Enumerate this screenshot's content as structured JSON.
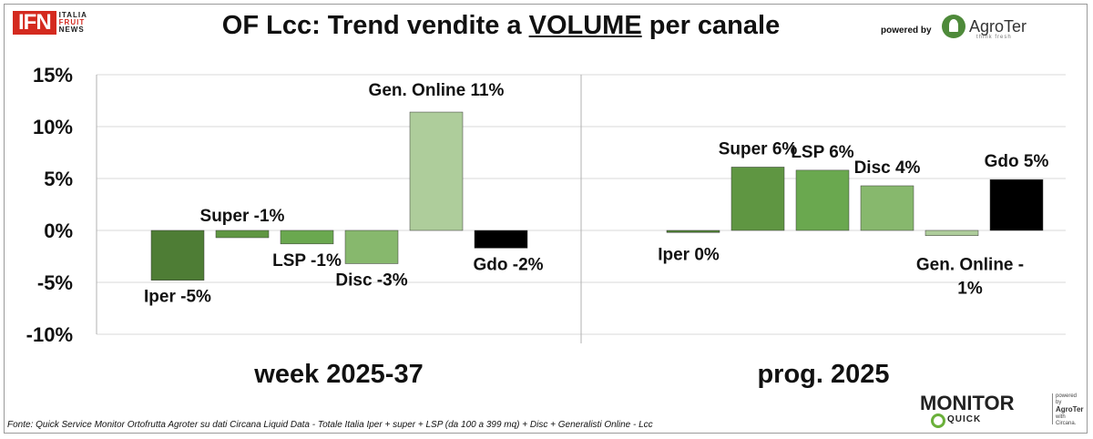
{
  "header": {
    "ifn_logo": "IFN",
    "ifn_sub": [
      "ITALIA",
      "FRUIT",
      "NEWS"
    ],
    "title_pre": "OF Lcc: Trend vendite a ",
    "title_under": "VOLUME",
    "title_post": " per canale",
    "powered_by": "powered by",
    "agroter_name": "AgroTer",
    "agroter_tag": "think fresh"
  },
  "chart_data": {
    "type": "bar",
    "y_ticks": [
      "15%",
      "10%",
      "5%",
      "0%",
      "-5%",
      "-10%"
    ],
    "ylim": [
      -10,
      15
    ],
    "grid": true,
    "groups": [
      {
        "name": "week 2025-37",
        "bars": [
          {
            "label": "Iper -5%",
            "value": -4.8,
            "color": "#4e7d35"
          },
          {
            "label": "Super -1%",
            "value": -0.7,
            "color": "#5f9642"
          },
          {
            "label": "LSP -1%",
            "value": -1.3,
            "color": "#6aa84f"
          },
          {
            "label": "Disc -3%",
            "value": -3.2,
            "color": "#87b86d"
          },
          {
            "label": "Gen. Online 11%",
            "value": 11.4,
            "color": "#aecd9b"
          },
          {
            "label": "Gdo -2%",
            "value": -1.7,
            "color": "#000000"
          }
        ]
      },
      {
        "name": "prog. 2025",
        "bars": [
          {
            "label": "Iper 0%",
            "value": -0.2,
            "color": "#4e7d35"
          },
          {
            "label": "Super 6%",
            "value": 6.1,
            "color": "#5f9642"
          },
          {
            "label": "LSP 6%",
            "value": 5.8,
            "color": "#6aa84f"
          },
          {
            "label": "Disc 4%",
            "value": 4.3,
            "color": "#87b86d"
          },
          {
            "label": "Gen. Online -\n1%",
            "value": -0.5,
            "color": "#aecd9b"
          },
          {
            "label": "Gdo 5%",
            "value": 4.9,
            "color": "#000000"
          }
        ]
      }
    ]
  },
  "footer": {
    "source": "Fonte: Quick Service Monitor Ortofrutta Agroter su dati Circana Liquid Data - Totale Italia Iper + super + LSP (da 100 a 399 mq) + Disc + Generalisti Online - Lcc"
  },
  "monitor_logo": {
    "word": "MONITOR",
    "quick": "QUICK",
    "side": [
      "powered by",
      "AgroTer",
      "with",
      "Circana."
    ]
  }
}
